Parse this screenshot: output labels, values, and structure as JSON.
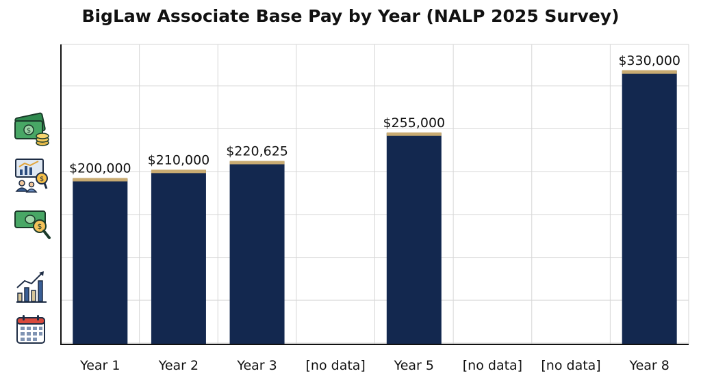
{
  "chart_data": {
    "type": "bar",
    "title": "BigLaw Associate Base Pay by Year (NALP 2025 Survey)",
    "xlabel": "",
    "ylabel": "",
    "categories": [
      "Year 1",
      "Year 2",
      "Year 3",
      "[no data]",
      "Year 5",
      "[no data]",
      "[no data]",
      "Year 8"
    ],
    "values": [
      200000,
      210000,
      220625,
      null,
      255000,
      null,
      null,
      330000
    ],
    "data_labels": [
      "$200,000",
      "$210,000",
      "$220,625",
      "",
      "$255,000",
      "",
      "",
      "$330,000"
    ],
    "ylim": [
      0,
      362000
    ],
    "grid": true,
    "legend": "none",
    "colors": {
      "bar": "#13284f",
      "bar_cap": "#c8ab72",
      "grid": "#d6d6d6",
      "axis": "#111111"
    }
  },
  "decorations": {
    "icons": [
      "cash-coins-icon",
      "analytics-presentation-icon",
      "money-search-icon",
      "growth-bar-chart-icon",
      "calendar-icon"
    ]
  }
}
